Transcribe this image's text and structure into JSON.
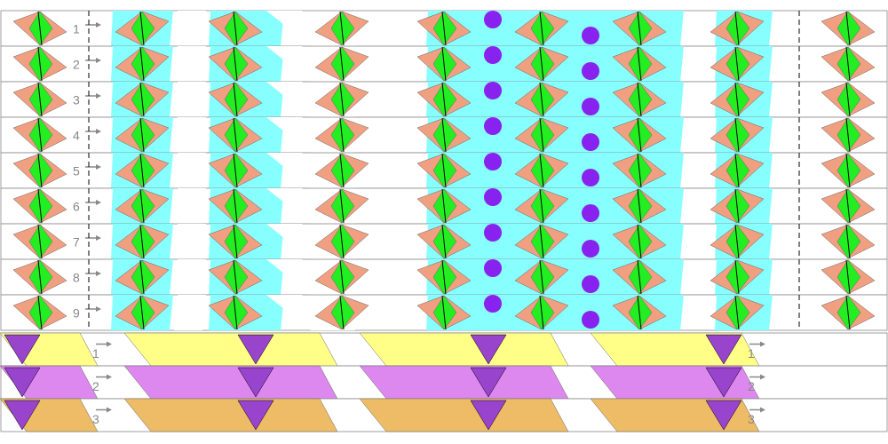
{
  "top_strips": {
    "labels": [
      "1",
      "2",
      "3",
      "4",
      "5",
      "6",
      "7",
      "8",
      "9"
    ]
  },
  "bottom_strips": {
    "labels": [
      "1",
      "2",
      "3"
    ]
  }
}
